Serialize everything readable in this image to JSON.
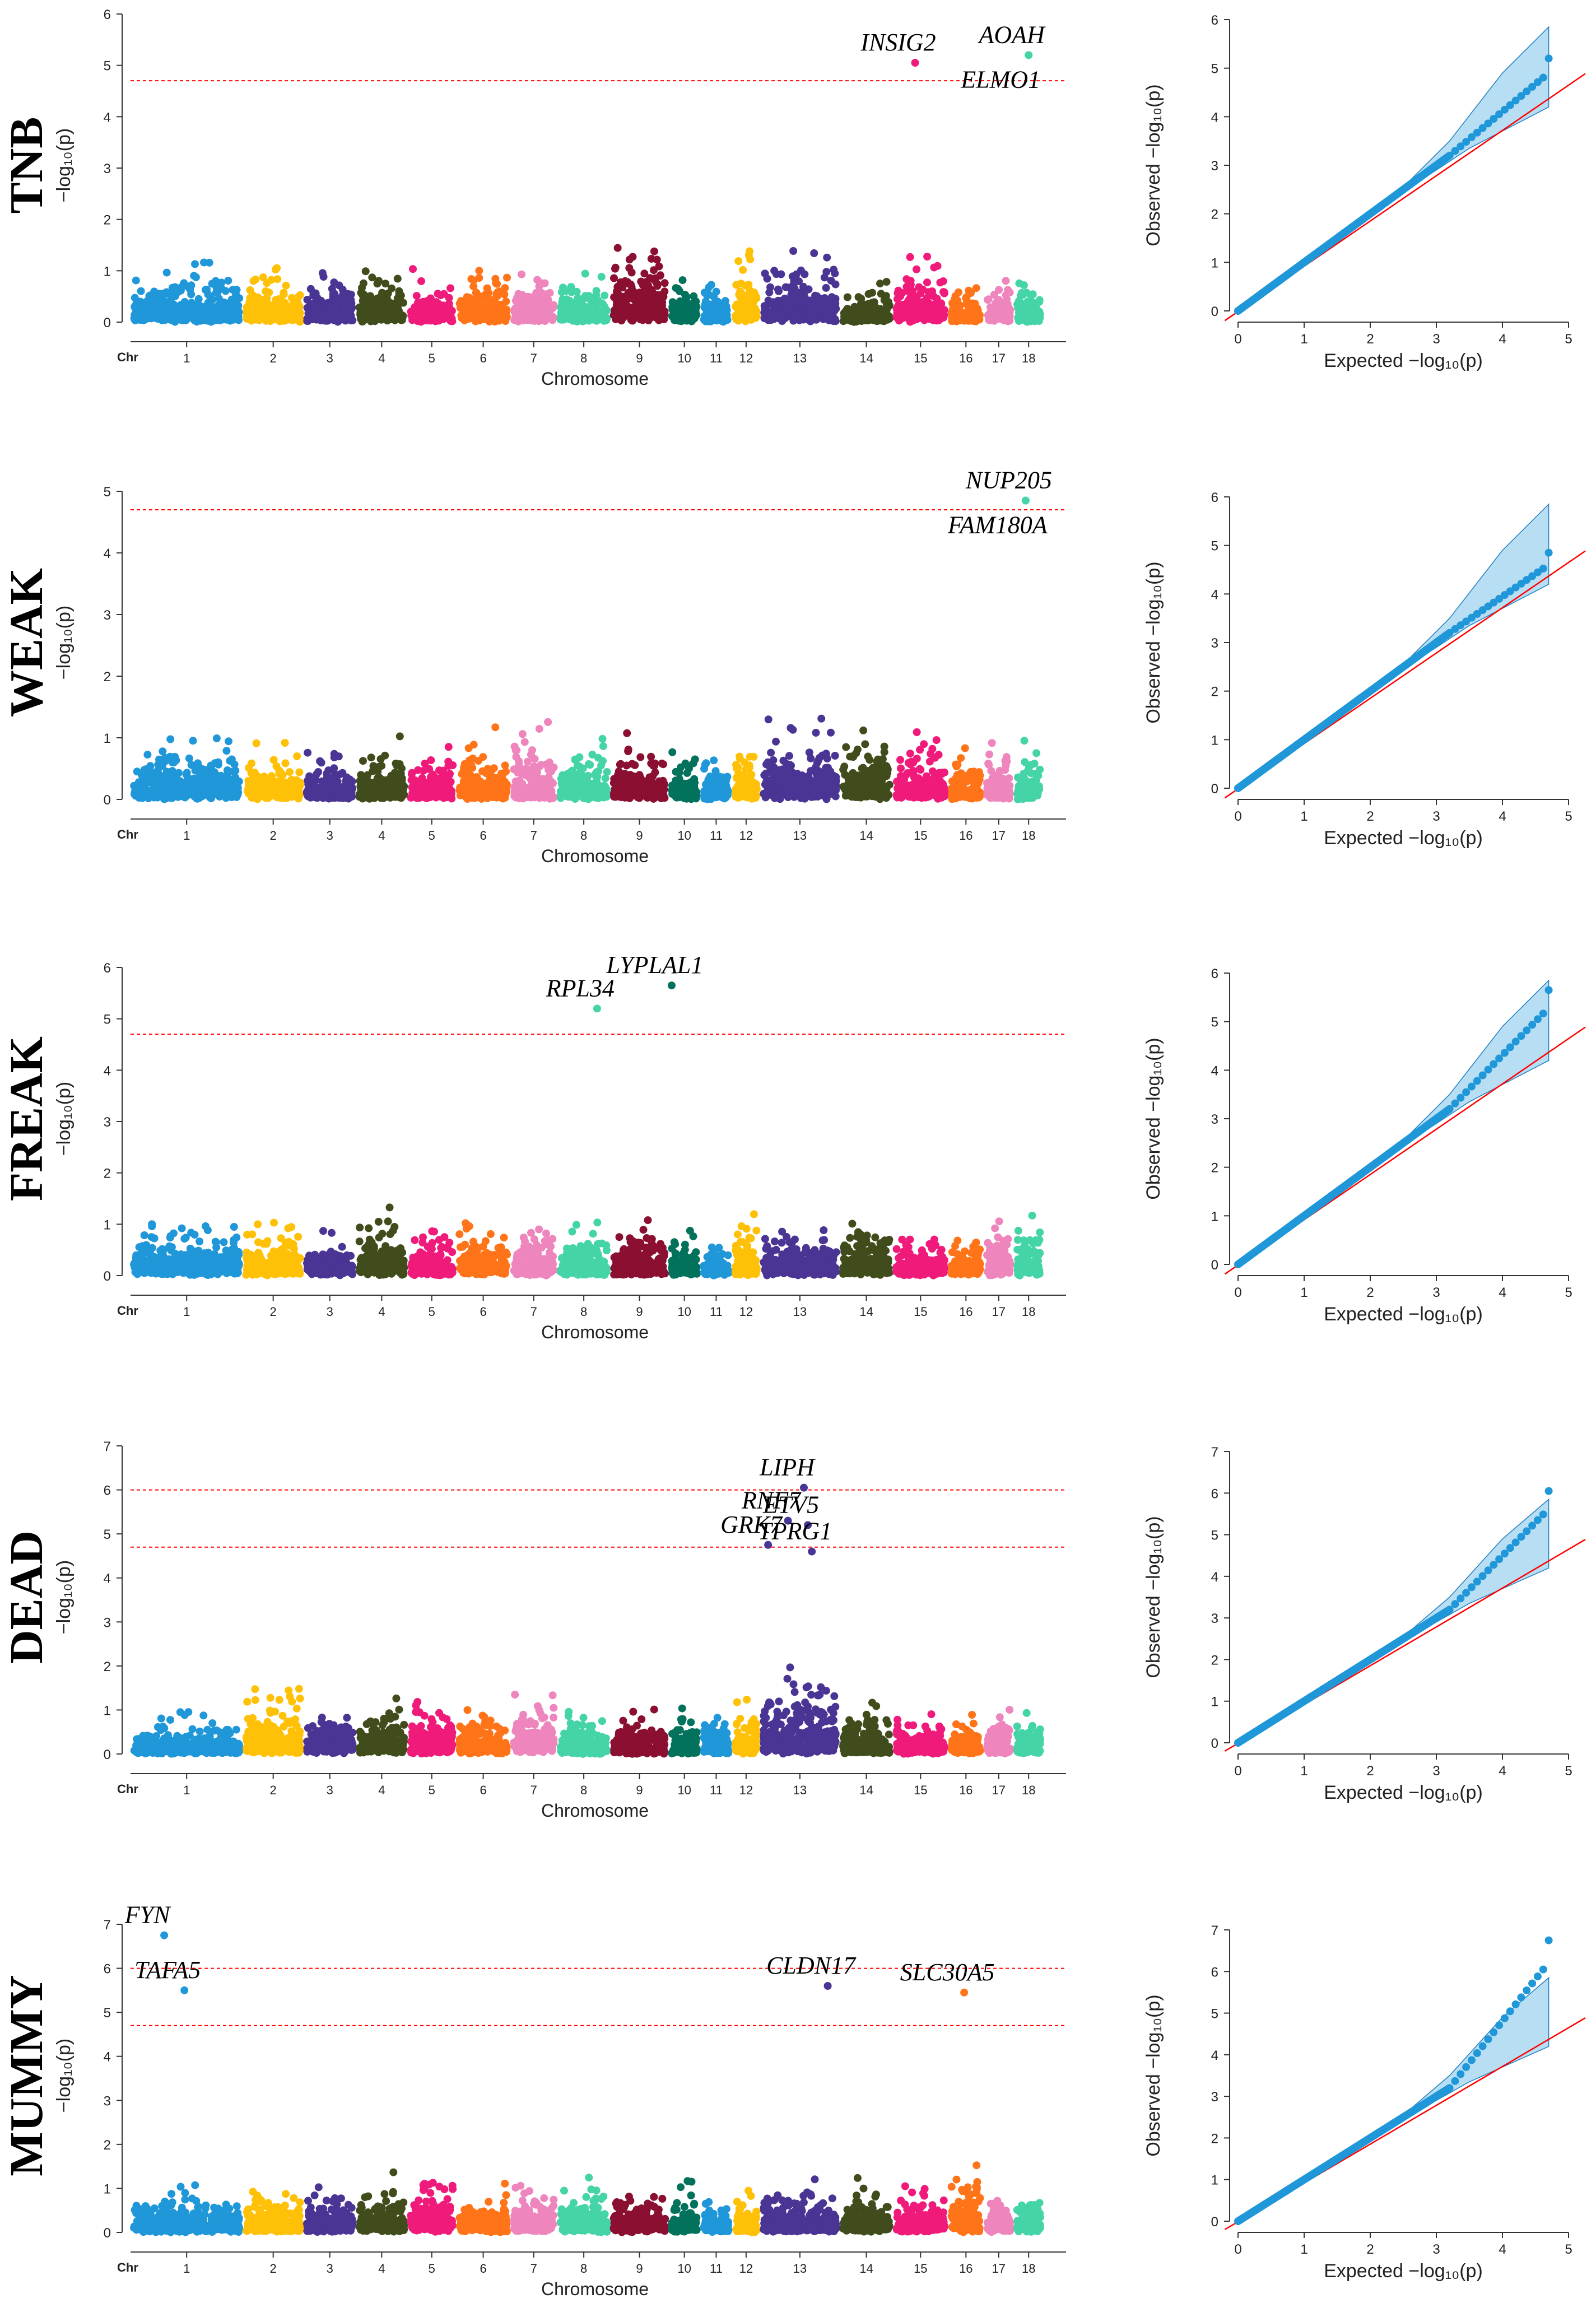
{
  "chart_data": {
    "type": "scatter",
    "title": "",
    "chromosomes": [
      "1",
      "2",
      "3",
      "4",
      "5",
      "6",
      "7",
      "8",
      "9",
      "10",
      "11",
      "12",
      "13",
      "14",
      "15",
      "16",
      "17",
      "18"
    ],
    "chromosome_colors": [
      "#1f97d8",
      "#ffc107",
      "#4a3594",
      "#404c1c",
      "#ef1a7a",
      "#ff7418",
      "#ee86bd",
      "#45d4a8",
      "#8a0f31",
      "#03725c",
      "#1f97d8",
      "#ffc107",
      "#4a3594",
      "#404c1c",
      "#ef1a7a",
      "#ff7418",
      "#ee86bd",
      "#45d4a8"
    ],
    "manhattan_xlabel": "Chromosome",
    "manhattan_ylabel": "−log₁₀(p)",
    "chr_axis_label": "Chr",
    "qq_xlabel": "Expected  −log₁₀(p)",
    "qq_ylabel": "Observed  −log₁₀(p)",
    "qq_line_color": "#ff0000",
    "qq_band_color": "#88c8ec",
    "point_color_qq": "#1f97d8",
    "threshold_color": "#ff0000",
    "qq_xlim": [
      0,
      5
    ],
    "traits": [
      {
        "name": "TNB",
        "ylim": [
          0,
          6
        ],
        "yticks": [
          0,
          1,
          2,
          3,
          4,
          5,
          6
        ],
        "thresholds": [
          4.7
        ],
        "peaks": [
          0.22,
          0.23,
          0.18,
          0.21,
          0.19,
          0.23,
          0.21,
          0.18,
          0.36,
          0.16,
          0.17,
          0.3,
          0.26,
          0.15,
          0.25,
          0.15,
          0.18,
          0.21
        ],
        "top_hits": [
          {
            "chr": "15",
            "pos": 0.4,
            "y": 5.05,
            "gene": "INSIG2"
          },
          {
            "chr": "18",
            "pos": 0.5,
            "y": 5.2,
            "gene": "ELMO1"
          },
          {
            "chr": "18",
            "pos": 0.5,
            "y": 5.2,
            "gene": "AOAH"
          }
        ],
        "qq": {
          "ylim": [
            0,
            6
          ],
          "max_observed": 5.2,
          "lambda": 1.0
        }
      },
      {
        "name": "WEAK",
        "ylim": [
          0,
          5
        ],
        "yticks": [
          0,
          1,
          2,
          3,
          4,
          5
        ],
        "thresholds": [
          4.7
        ],
        "peaks": [
          0.26,
          0.21,
          0.17,
          0.24,
          0.22,
          0.26,
          0.28,
          0.22,
          0.24,
          0.17,
          0.19,
          0.23,
          0.3,
          0.29,
          0.25,
          0.19,
          0.21,
          0.22
        ],
        "top_hits": [
          {
            "chr": "18",
            "pos": 0.4,
            "y": 4.85,
            "gene": "NUP205"
          },
          {
            "chr": "18",
            "pos": 0.4,
            "y": 4.85,
            "gene": "FAM180A"
          }
        ],
        "qq": {
          "ylim": [
            0,
            6
          ],
          "max_observed": 4.85,
          "lambda": 1.0
        }
      },
      {
        "name": "FREAK",
        "ylim": [
          0,
          6
        ],
        "yticks": [
          0,
          1,
          2,
          3,
          4,
          5,
          6
        ],
        "thresholds": [
          4.7
        ],
        "peaks": [
          0.21,
          0.19,
          0.17,
          0.26,
          0.17,
          0.2,
          0.21,
          0.2,
          0.21,
          0.2,
          0.15,
          0.26,
          0.2,
          0.24,
          0.17,
          0.17,
          0.23,
          0.26
        ],
        "top_hits": [
          {
            "chr": "8",
            "pos": 0.75,
            "y": 5.2,
            "gene": "RPL34"
          },
          {
            "chr": "10",
            "pos": 0.1,
            "y": 5.65,
            "gene": "LYPLAL1"
          }
        ],
        "qq": {
          "ylim": [
            0,
            6
          ],
          "max_observed": 5.65,
          "lambda": 1.0
        }
      },
      {
        "name": "DEAD",
        "ylim": [
          0,
          7
        ],
        "yticks": [
          0,
          1,
          2,
          3,
          4,
          5,
          6,
          7
        ],
        "thresholds": [
          6.0,
          4.7
        ],
        "peaks": [
          0.15,
          0.26,
          0.23,
          0.22,
          0.27,
          0.18,
          0.28,
          0.17,
          0.16,
          0.17,
          0.16,
          0.2,
          0.38,
          0.19,
          0.15,
          0.16,
          0.18,
          0.2
        ],
        "top_hits": [
          {
            "chr": "13",
            "pos": 0.55,
            "y": 6.05,
            "gene": "LIPH"
          },
          {
            "chr": "13",
            "pos": 0.35,
            "y": 5.3,
            "gene": "RNF7"
          },
          {
            "chr": "13",
            "pos": 0.6,
            "y": 5.2,
            "gene": "ETV5"
          },
          {
            "chr": "13",
            "pos": 0.1,
            "y": 4.75,
            "gene": "GRK7"
          },
          {
            "chr": "13",
            "pos": 0.65,
            "y": 4.6,
            "gene": "TPRG1"
          }
        ],
        "qq": {
          "ylim": [
            0,
            7
          ],
          "max_observed": 6.05,
          "lambda": 1.0
        }
      },
      {
        "name": "MUMMY",
        "ylim": [
          0,
          7
        ],
        "yticks": [
          0,
          1,
          2,
          3,
          4,
          5,
          6,
          7
        ],
        "thresholds": [
          6.0,
          4.7
        ],
        "peaks": [
          0.17,
          0.19,
          0.17,
          0.22,
          0.28,
          0.18,
          0.21,
          0.2,
          0.17,
          0.19,
          0.14,
          0.18,
          0.2,
          0.2,
          0.17,
          0.3,
          0.19,
          0.18
        ],
        "top_hits": [
          {
            "chr": "1",
            "pos": 0.3,
            "y": 6.75,
            "gene": "FYN"
          },
          {
            "chr": "1",
            "pos": 0.48,
            "y": 5.5,
            "gene": "TAFA5"
          },
          {
            "chr": "13",
            "pos": 0.85,
            "y": 5.6,
            "gene": "CLDN17"
          },
          {
            "chr": "16",
            "pos": 0.45,
            "y": 5.45,
            "gene": "SLC30A5"
          }
        ],
        "qq": {
          "ylim": [
            0,
            7
          ],
          "max_observed": 6.75,
          "lambda": 1.0
        }
      }
    ]
  }
}
